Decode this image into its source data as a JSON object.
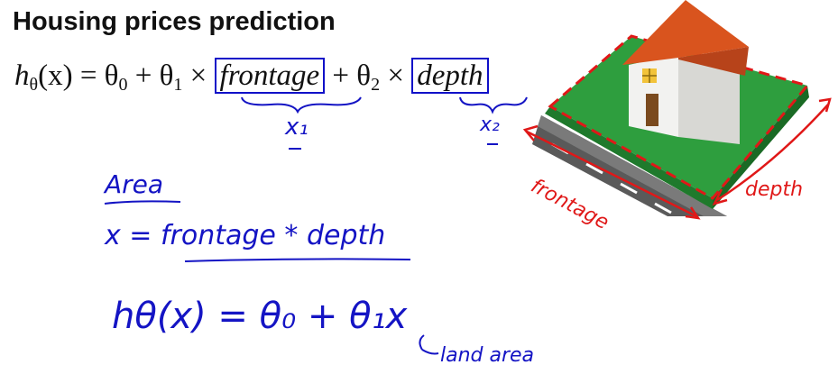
{
  "slide": {
    "title": "Housing prices prediction"
  },
  "equation": {
    "lhs": "h",
    "lhs_sub": "θ",
    "lhs_arg": "(x) = θ",
    "theta0_sub": "0",
    "plus1": " + θ",
    "theta1_sub": "1",
    "times1": " × ",
    "feature1": "frontage",
    "plus2": " + θ",
    "theta2_sub": "2",
    "times2": " × ",
    "feature2": "depth"
  },
  "annotations": {
    "x1": "x₁",
    "x2": "x₂",
    "area_heading": "Area",
    "area_def": "x = frontage * depth",
    "new_hypothesis": "hθ(x) = θ₀ + θ₁x",
    "land_area": "land area",
    "frontage_label": "frontage",
    "depth_label": "depth"
  },
  "colors": {
    "ink": "#1414c4",
    "red_ink": "#e01818",
    "grass": "#2e9e3e",
    "roof": "#d9541e",
    "wall": "#f2f2f0",
    "road": "#5a5a5a"
  }
}
